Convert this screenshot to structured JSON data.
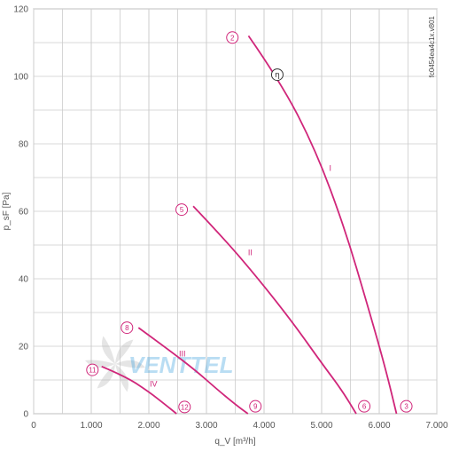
{
  "chart_data": {
    "type": "line",
    "title": "",
    "xlabel": "q_V [m³/h]",
    "ylabel": "p_sF [Pa]",
    "xlim": [
      0,
      7000
    ],
    "ylim": [
      0,
      120
    ],
    "x_ticks": [
      0,
      1000,
      2000,
      3000,
      4000,
      5000,
      6000,
      7000
    ],
    "x_tick_labels": [
      "0",
      "1.000",
      "2.000",
      "3.000",
      "4.000",
      "5.000",
      "6.000",
      "7.000"
    ],
    "y_ticks": [
      0,
      20,
      40,
      60,
      80,
      100,
      120
    ],
    "y_tick_labels": [
      "0",
      "20",
      "40",
      "60",
      "80",
      "100",
      "120"
    ],
    "grid": true,
    "series": [
      {
        "name": "I",
        "x": [
          3730,
          4300,
          4900,
          5400,
          5800,
          6100,
          6300
        ],
        "y": [
          112,
          98,
          78,
          55,
          32,
          14,
          0
        ]
      },
      {
        "name": "II",
        "x": [
          2770,
          3300,
          3900,
          4500,
          5000,
          5350,
          5600
        ],
        "y": [
          61.5,
          52,
          40,
          27,
          15,
          7,
          0
        ]
      },
      {
        "name": "III",
        "x": [
          1820,
          2300,
          2800,
          3200,
          3520,
          3720
        ],
        "y": [
          25.5,
          19.5,
          13,
          7,
          2.5,
          0
        ]
      },
      {
        "name": "IV",
        "x": [
          1180,
          1600,
          2000,
          2300,
          2480
        ],
        "y": [
          14,
          11,
          6.5,
          2.5,
          0
        ]
      }
    ],
    "annotations": [
      {
        "text": "2",
        "x": 3450,
        "y": 111.5
      },
      {
        "text": "5",
        "x": 2570,
        "y": 60.5
      },
      {
        "text": "8",
        "x": 1620,
        "y": 25.5
      },
      {
        "text": "11",
        "x": 1020,
        "y": 13
      },
      {
        "text": "12",
        "x": 2620,
        "y": 2
      },
      {
        "text": "9",
        "x": 3850,
        "y": 2.2
      },
      {
        "text": "6",
        "x": 5740,
        "y": 2.2
      },
      {
        "text": "3",
        "x": 6470,
        "y": 2.2
      }
    ],
    "efficiency_marker": {
      "symbol": "η",
      "x": 4230,
      "y": 100.5
    },
    "series_label_positions": [
      {
        "name": "I",
        "x": 5150,
        "y": 72
      },
      {
        "name": "II",
        "x": 3760,
        "y": 47
      },
      {
        "name": "III",
        "x": 2580,
        "y": 17
      },
      {
        "name": "IV",
        "x": 2080,
        "y": 8
      }
    ],
    "side_code": "fc0454ea4c1x.v801",
    "watermark": "VENTTEL"
  },
  "colors": {
    "curve": "#d0267a",
    "grid": "#cccccc",
    "axis": "#999999",
    "watermark_blue": "#3aa0dd",
    "watermark_gray": "#b5b5b5"
  }
}
